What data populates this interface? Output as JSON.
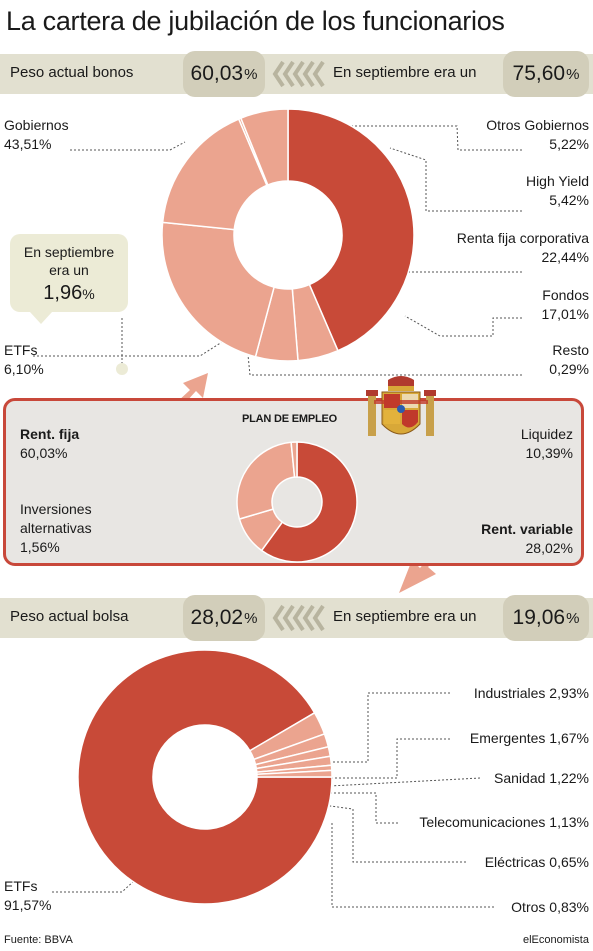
{
  "title": "La cartera de jubilación de los funcionarios",
  "colors": {
    "main": "#c84a38",
    "light": "#eba48f",
    "border": "#c8483a",
    "arrow": "#eba48f"
  },
  "bonds_bar": {
    "label": "Peso actual bonos",
    "current": "60,03",
    "previous_label": "En septiembre era un",
    "previous": "75,60",
    "unit": "%"
  },
  "stocks_bar": {
    "label": "Peso actual bolsa",
    "current": "28,02",
    "previous_label": "En septiembre era un",
    "previous": "19,06",
    "unit": "%"
  },
  "etf_note": {
    "line1": "En septiembre",
    "line2": "era un",
    "value": "1,96",
    "unit": "%"
  },
  "plan": {
    "title": "PLAN DE EMPLEO"
  },
  "chart_data": [
    {
      "type": "pie",
      "name": "Renta fija",
      "slices": [
        {
          "label": "Gobiernos",
          "value": 43.51,
          "display": "43,51%"
        },
        {
          "label": "Otros Gobiernos",
          "value": 5.22,
          "display": "5,22%"
        },
        {
          "label": "High Yield",
          "value": 5.42,
          "display": "5,42%"
        },
        {
          "label": "Renta fija corporativa",
          "value": 22.44,
          "display": "22,44%"
        },
        {
          "label": "Fondos",
          "value": 17.01,
          "display": "17,01%"
        },
        {
          "label": "Resto",
          "value": 0.29,
          "display": "0,29%"
        },
        {
          "label": "ETFs",
          "value": 6.1,
          "display": "6,10%"
        }
      ]
    },
    {
      "type": "pie",
      "name": "Plan de empleo",
      "slices": [
        {
          "label": "Rent. fija",
          "value": 60.03,
          "display": "60,03%"
        },
        {
          "label": "Liquidez",
          "value": 10.39,
          "display": "10,39%"
        },
        {
          "label": "Rent. variable",
          "value": 28.02,
          "display": "28,02%"
        },
        {
          "label": "Inversiones alternativas",
          "value": 1.56,
          "display": "1,56%"
        }
      ]
    },
    {
      "type": "pie",
      "name": "Renta variable",
      "slices": [
        {
          "label": "ETFs",
          "value": 91.57,
          "display": "91,57%"
        },
        {
          "label": "Industriales",
          "value": 2.93,
          "display": "2,93%"
        },
        {
          "label": "Emergentes",
          "value": 1.67,
          "display": "1,67%"
        },
        {
          "label": "Sanidad",
          "value": 1.22,
          "display": "1,22%"
        },
        {
          "label": "Telecomunicaciones",
          "value": 1.13,
          "display": "1,13%"
        },
        {
          "label": "Eléctricas",
          "value": 0.65,
          "display": "0,65%"
        },
        {
          "label": "Otros",
          "value": 0.83,
          "display": "0,83%"
        }
      ]
    }
  ],
  "footer": {
    "source": "Fuente: BBVA",
    "brand": "elEconomista"
  }
}
